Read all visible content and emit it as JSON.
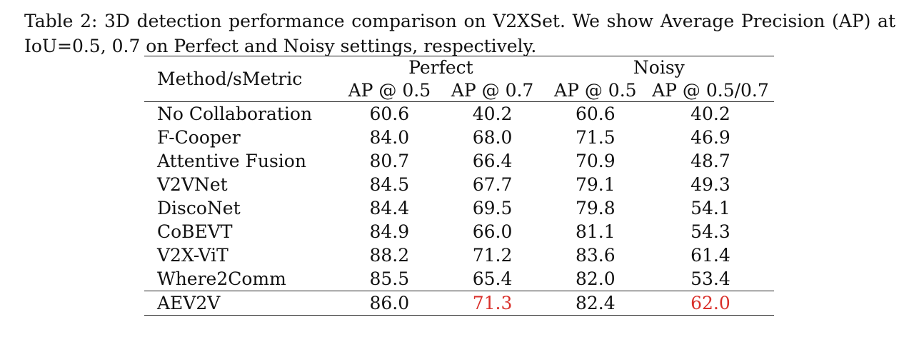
{
  "caption": {
    "line1": "Table 2:  3D detection performance comparison on V2XSet.  We show Average Precision (AP) at",
    "line2": "IoU=0.5, 0.7 on Perfect and Noisy settings, respectively."
  },
  "table": {
    "header": {
      "method": "Method/sMetric",
      "group_perfect": "Perfect",
      "group_noisy": "Noisy",
      "sub": [
        "AP @ 0.5",
        "AP @ 0.7",
        "AP @ 0.5",
        "AP @ 0.5/0.7"
      ]
    },
    "rows": [
      {
        "method": "No Collaboration",
        "values": [
          "60.6",
          "40.2",
          "60.6",
          "40.2"
        ]
      },
      {
        "method": "F-Cooper",
        "values": [
          "84.0",
          "68.0",
          "71.5",
          "46.9"
        ]
      },
      {
        "method": "Attentive Fusion",
        "values": [
          "80.7",
          "66.4",
          "70.9",
          "48.7"
        ]
      },
      {
        "method": "V2VNet",
        "values": [
          "84.5",
          "67.7",
          "79.1",
          "49.3"
        ]
      },
      {
        "method": "DiscoNet",
        "values": [
          "84.4",
          "69.5",
          "79.8",
          "54.1"
        ]
      },
      {
        "method": "CoBEVT",
        "values": [
          "84.9",
          "66.0",
          "81.1",
          "54.3"
        ]
      },
      {
        "method": "V2X-ViT",
        "values": [
          "88.2",
          "71.2",
          "83.6",
          "61.4"
        ]
      },
      {
        "method": "Where2Comm",
        "values": [
          "85.5",
          "65.4",
          "82.0",
          "53.4"
        ]
      }
    ],
    "final_row": {
      "method": "AEV2V",
      "values": [
        "86.0",
        "71.3",
        "82.4",
        "62.0"
      ]
    }
  },
  "colors": {
    "highlight_red": "#d9302b",
    "text": "#111111"
  }
}
